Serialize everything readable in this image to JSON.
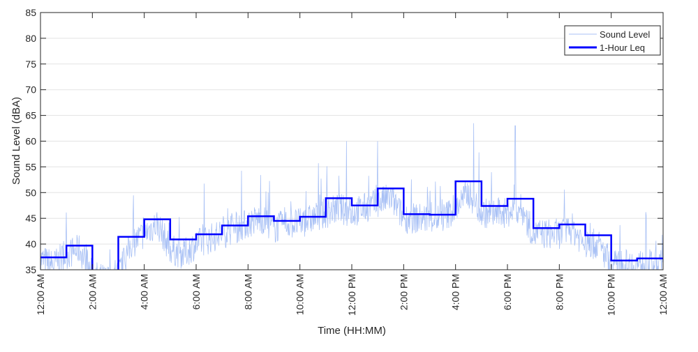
{
  "chart_data": {
    "type": "line",
    "title": "",
    "xlabel": "Time (HH:MM)",
    "ylabel": "Sound Level (dBA)",
    "xlim_hours": [
      0,
      24
    ],
    "ylim": [
      35,
      85
    ],
    "yticks": [
      35,
      40,
      45,
      50,
      55,
      60,
      65,
      70,
      75,
      80,
      85
    ],
    "xticks_hours": [
      0,
      2,
      4,
      6,
      8,
      10,
      12,
      14,
      16,
      18,
      20,
      22,
      24
    ],
    "xtick_labels": [
      "12:00 AM",
      "2:00 AM",
      "4:00 AM",
      "6:00 AM",
      "8:00 AM",
      "10:00 AM",
      "12:00 PM",
      "2:00 PM",
      "4:00 PM",
      "6:00 PM",
      "8:00 PM",
      "10:00 PM",
      "12:00 AM"
    ],
    "grid": "horizontal",
    "legend": {
      "placement": "top-right",
      "entries": [
        "Sound Level",
        "1-Hour Leq"
      ]
    },
    "series": [
      {
        "name": "Sound Level",
        "color": "#a9c1f5",
        "note": "half-hour representative levels (dBA) of the fluctuating measured trace",
        "x_hours": [
          0,
          0.5,
          1,
          1.5,
          2,
          2.5,
          3,
          3.5,
          4,
          4.5,
          5,
          5.5,
          6,
          6.5,
          7,
          7.5,
          8,
          8.5,
          9,
          9.5,
          10,
          10.5,
          11,
          11.5,
          12,
          12.5,
          13,
          13.5,
          14,
          14.5,
          15,
          15.5,
          16,
          16.5,
          17,
          17.5,
          18,
          18.5,
          19,
          19.5,
          20,
          20.5,
          21,
          21.5,
          22,
          22.5,
          23,
          23.5
        ],
        "values": [
          37,
          36,
          38,
          39,
          34,
          33,
          34,
          40,
          42,
          44,
          39,
          38,
          40,
          41,
          42,
          43,
          44,
          45,
          43,
          44,
          44,
          45,
          46,
          47,
          46,
          47,
          48,
          49,
          45,
          45,
          45,
          45,
          47,
          50,
          46,
          46,
          46,
          47,
          42,
          42,
          42,
          43,
          40,
          40,
          36,
          36,
          36,
          36
        ],
        "peaks": [
          {
            "x_hours": 16.7,
            "value": 63.5
          },
          {
            "x_hours": 18.3,
            "value": 63.0
          },
          {
            "x_hours": 13.0,
            "value": 60.0
          },
          {
            "x_hours": 11.8,
            "value": 60.0
          }
        ]
      },
      {
        "name": "1-Hour Leq",
        "color": "#0000ff",
        "x_hours": [
          0,
          1,
          2,
          3,
          4,
          5,
          6,
          7,
          8,
          9,
          10,
          11,
          12,
          13,
          14,
          15,
          16,
          17,
          18,
          19,
          20,
          21,
          22,
          23
        ],
        "values": [
          37.4,
          39.7,
          33.0,
          41.4,
          44.8,
          40.9,
          41.9,
          43.6,
          45.4,
          44.5,
          45.3,
          48.9,
          47.5,
          50.8,
          45.8,
          45.7,
          52.2,
          47.4,
          48.8,
          43.1,
          43.8,
          41.7,
          36.8,
          37.2
        ]
      }
    ]
  }
}
